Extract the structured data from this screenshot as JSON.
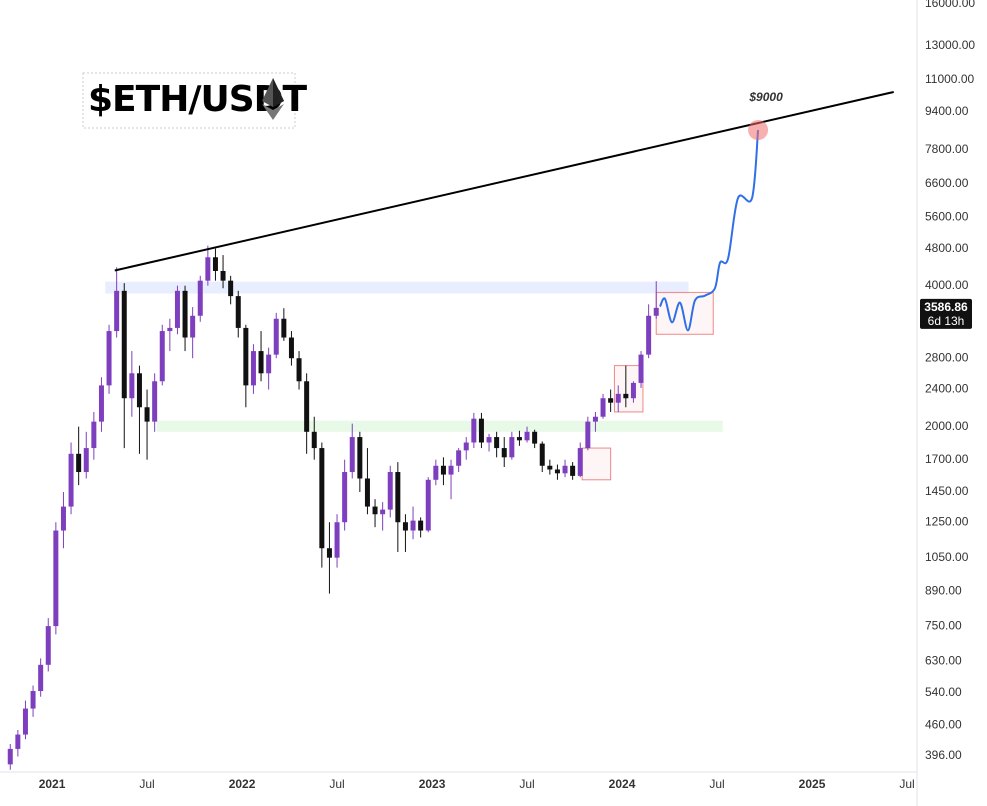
{
  "chart_data": {
    "type": "candlestick",
    "title": "$ETH/USDT",
    "log_scale": true,
    "grid": false,
    "up_color": "#7e3fbf",
    "down_color": "#111111",
    "xlim": [
      2020.726,
      2025.542
    ],
    "ylim": [
      366,
      16300
    ],
    "xticks": [
      2021,
      {
        "value": 2021.5,
        "label": "Jul"
      },
      2022,
      {
        "value": 2022.5,
        "label": "Jul"
      },
      2023,
      {
        "value": 2023.5,
        "label": "Jul"
      },
      2024,
      {
        "value": 2024.5,
        "label": "Jul"
      },
      2025,
      {
        "value": 2025.5,
        "label": "Jul"
      }
    ],
    "yticks": [
      {
        "value": 16000,
        "label": "16000.00"
      },
      {
        "value": 13000,
        "label": "13000.00"
      },
      {
        "value": 11000,
        "label": "11000.00"
      },
      {
        "value": 9400,
        "label": "9400.00"
      },
      {
        "value": 7800,
        "label": "7800.00"
      },
      {
        "value": 6600,
        "label": "6600.00"
      },
      {
        "value": 5600,
        "label": "5600.00"
      },
      {
        "value": 4800,
        "label": "4800.00"
      },
      {
        "value": 4000,
        "label": "4000.00"
      },
      {
        "value": 2800,
        "label": "2800.00"
      },
      {
        "value": 2400,
        "label": "2400.00"
      },
      {
        "value": 2000,
        "label": "2000.00"
      },
      {
        "value": 1700,
        "label": "1700.00"
      },
      {
        "value": 1450,
        "label": "1450.00"
      },
      {
        "value": 1250,
        "label": "1250.00"
      },
      {
        "value": 1050,
        "label": "1050.00"
      },
      {
        "value": 890,
        "label": "890.00"
      },
      {
        "value": 750,
        "label": "750.00"
      },
      {
        "value": 630,
        "label": "630.00"
      },
      {
        "value": 540,
        "label": "540.00"
      },
      {
        "value": 460,
        "label": "460.00"
      },
      {
        "value": 396,
        "label": "396.00"
      }
    ],
    "x": [
      2020.78,
      2020.82,
      2020.86,
      2020.9,
      2020.94,
      2020.98,
      2021.02,
      2021.06,
      2021.1,
      2021.14,
      2021.18,
      2021.22,
      2021.26,
      2021.3,
      2021.34,
      2021.38,
      2021.42,
      2021.46,
      2021.5,
      2021.54,
      2021.58,
      2021.62,
      2021.66,
      2021.7,
      2021.74,
      2021.78,
      2021.82,
      2021.86,
      2021.9,
      2021.94,
      2021.98,
      2022.02,
      2022.06,
      2022.1,
      2022.14,
      2022.18,
      2022.22,
      2022.26,
      2022.3,
      2022.34,
      2022.38,
      2022.42,
      2022.46,
      2022.5,
      2022.54,
      2022.58,
      2022.62,
      2022.66,
      2022.7,
      2022.74,
      2022.78,
      2022.82,
      2022.86,
      2022.9,
      2022.94,
      2022.98,
      2023.02,
      2023.06,
      2023.1,
      2023.14,
      2023.18,
      2023.22,
      2023.26,
      2023.3,
      2023.34,
      2023.38,
      2023.42,
      2023.46,
      2023.5,
      2023.54,
      2023.58,
      2023.62,
      2023.66,
      2023.7,
      2023.74,
      2023.78,
      2023.82,
      2023.86,
      2023.9,
      2023.94,
      2023.98,
      2024.02,
      2024.06,
      2024.1,
      2024.14,
      2024.18
    ],
    "ohlc": [
      [
        380,
        420,
        370,
        410
      ],
      [
        410,
        450,
        395,
        440
      ],
      [
        440,
        520,
        430,
        500
      ],
      [
        500,
        560,
        480,
        545
      ],
      [
        545,
        640,
        530,
        620
      ],
      [
        620,
        780,
        600,
        750
      ],
      [
        750,
        1250,
        720,
        1200
      ],
      [
        1200,
        1450,
        1100,
        1350
      ],
      [
        1350,
        1850,
        1300,
        1750
      ],
      [
        1750,
        2000,
        1500,
        1600
      ],
      [
        1600,
        1950,
        1550,
        1800
      ],
      [
        1800,
        2150,
        1700,
        2050
      ],
      [
        2050,
        2550,
        1950,
        2450
      ],
      [
        2450,
        3300,
        2350,
        3200
      ],
      [
        3200,
        4380,
        3100,
        3900
      ],
      [
        3900,
        4050,
        1800,
        2300
      ],
      [
        2300,
        2900,
        2100,
        2600
      ],
      [
        2600,
        2700,
        1750,
        2200
      ],
      [
        2200,
        2400,
        1700,
        2050
      ],
      [
        2050,
        2600,
        1950,
        2500
      ],
      [
        2500,
        3300,
        2450,
        3200
      ],
      [
        3200,
        3400,
        2900,
        3250
      ],
      [
        3250,
        4000,
        3150,
        3900
      ],
      [
        3900,
        4000,
        2900,
        3100
      ],
      [
        3100,
        3600,
        2800,
        3450
      ],
      [
        3450,
        4200,
        3350,
        4100
      ],
      [
        4100,
        4870,
        4000,
        4600
      ],
      [
        4600,
        4800,
        4100,
        4300
      ],
      [
        4300,
        4650,
        3950,
        4100
      ],
      [
        4100,
        4200,
        3650,
        3800
      ],
      [
        3800,
        3900,
        3100,
        3250
      ],
      [
        3250,
        3300,
        2200,
        2450
      ],
      [
        2450,
        3000,
        2350,
        2900
      ],
      [
        2900,
        3200,
        2500,
        2600
      ],
      [
        2600,
        2950,
        2400,
        2850
      ],
      [
        2850,
        3500,
        2800,
        3400
      ],
      [
        3400,
        3580,
        3050,
        3100
      ],
      [
        3100,
        3200,
        2700,
        2800
      ],
      [
        2800,
        2900,
        2400,
        2500
      ],
      [
        2500,
        2600,
        1750,
        1950
      ],
      [
        1950,
        2100,
        1700,
        1800
      ],
      [
        1800,
        1850,
        1000,
        1100
      ],
      [
        1100,
        1250,
        880,
        1050
      ],
      [
        1050,
        1300,
        1000,
        1250
      ],
      [
        1250,
        1700,
        1200,
        1600
      ],
      [
        1600,
        2030,
        1550,
        1900
      ],
      [
        1900,
        1950,
        1450,
        1550
      ],
      [
        1550,
        1800,
        1300,
        1350
      ],
      [
        1350,
        1400,
        1220,
        1300
      ],
      [
        1300,
        1380,
        1200,
        1330
      ],
      [
        1330,
        1650,
        1280,
        1600
      ],
      [
        1600,
        1680,
        1080,
        1250
      ],
      [
        1250,
        1300,
        1080,
        1200
      ],
      [
        1200,
        1350,
        1150,
        1260
      ],
      [
        1260,
        1280,
        1160,
        1200
      ],
      [
        1200,
        1560,
        1190,
        1540
      ],
      [
        1540,
        1700,
        1500,
        1650
      ],
      [
        1650,
        1720,
        1500,
        1580
      ],
      [
        1580,
        1700,
        1400,
        1650
      ],
      [
        1650,
        1800,
        1600,
        1780
      ],
      [
        1780,
        1900,
        1700,
        1850
      ],
      [
        1850,
        2140,
        1800,
        2080
      ],
      [
        2080,
        2140,
        1800,
        1850
      ],
      [
        1850,
        1930,
        1770,
        1900
      ],
      [
        1900,
        1950,
        1720,
        1800
      ],
      [
        1800,
        1900,
        1640,
        1720
      ],
      [
        1720,
        1950,
        1700,
        1900
      ],
      [
        1900,
        1960,
        1820,
        1870
      ],
      [
        1870,
        2000,
        1850,
        1950
      ],
      [
        1950,
        1970,
        1800,
        1840
      ],
      [
        1840,
        1860,
        1600,
        1650
      ],
      [
        1650,
        1700,
        1580,
        1620
      ],
      [
        1620,
        1660,
        1540,
        1590
      ],
      [
        1590,
        1700,
        1560,
        1650
      ],
      [
        1650,
        1680,
        1540,
        1570
      ],
      [
        1570,
        1850,
        1560,
        1800
      ],
      [
        1800,
        2100,
        1780,
        2050
      ],
      [
        2050,
        2150,
        1950,
        2100
      ],
      [
        2100,
        2350,
        2080,
        2300
      ],
      [
        2300,
        2400,
        2150,
        2250
      ],
      [
        2250,
        2450,
        2150,
        2350
      ],
      [
        2350,
        2700,
        2200,
        2300
      ],
      [
        2300,
        2500,
        2250,
        2480
      ],
      [
        2480,
        2900,
        2420,
        2850
      ],
      [
        2850,
        3650,
        2800,
        3450
      ],
      [
        3450,
        4090,
        3400,
        3586.86
      ]
    ],
    "price_tag": {
      "value": 3586.86,
      "label": "3586.86",
      "countdown": "6d 13h"
    },
    "trendline": {
      "x": [
        2021.33,
        2025.43
      ],
      "y": [
        4310,
        10370
      ],
      "color": "#000000"
    },
    "bands": [
      {
        "xlim": [
          2021.28,
          2024.35
        ],
        "ylim": [
          3850,
          4080
        ],
        "color": "rgba(110,140,255,0.16)"
      },
      {
        "xlim": [
          2021.55,
          2024.53
        ],
        "ylim": [
          1950,
          2060
        ],
        "color": "rgba(110,220,110,0.16)"
      }
    ],
    "boxes": [
      {
        "xlim": [
          2023.79,
          2023.94
        ],
        "ylim": [
          1540,
          1800
        ]
      },
      {
        "xlim": [
          2023.96,
          2024.11
        ],
        "ylim": [
          2150,
          2700
        ]
      },
      {
        "xlim": [
          2024.18,
          2024.48
        ],
        "ylim": [
          3150,
          3870
        ]
      }
    ],
    "projection": {
      "color": "#2f6fe8",
      "x": [
        2024.2,
        2024.226,
        2024.263,
        2024.305,
        2024.347,
        2024.384,
        2024.437,
        2024.489,
        2024.516,
        2024.558,
        2024.61,
        2024.684,
        2024.716
      ],
      "y": [
        3610,
        3750,
        3340,
        3680,
        3210,
        3720,
        3810,
        3950,
        4480,
        4570,
        6150,
        6150,
        8600
      ]
    },
    "target": {
      "x": 2024.716,
      "y": 8600,
      "label": "$9000"
    }
  }
}
